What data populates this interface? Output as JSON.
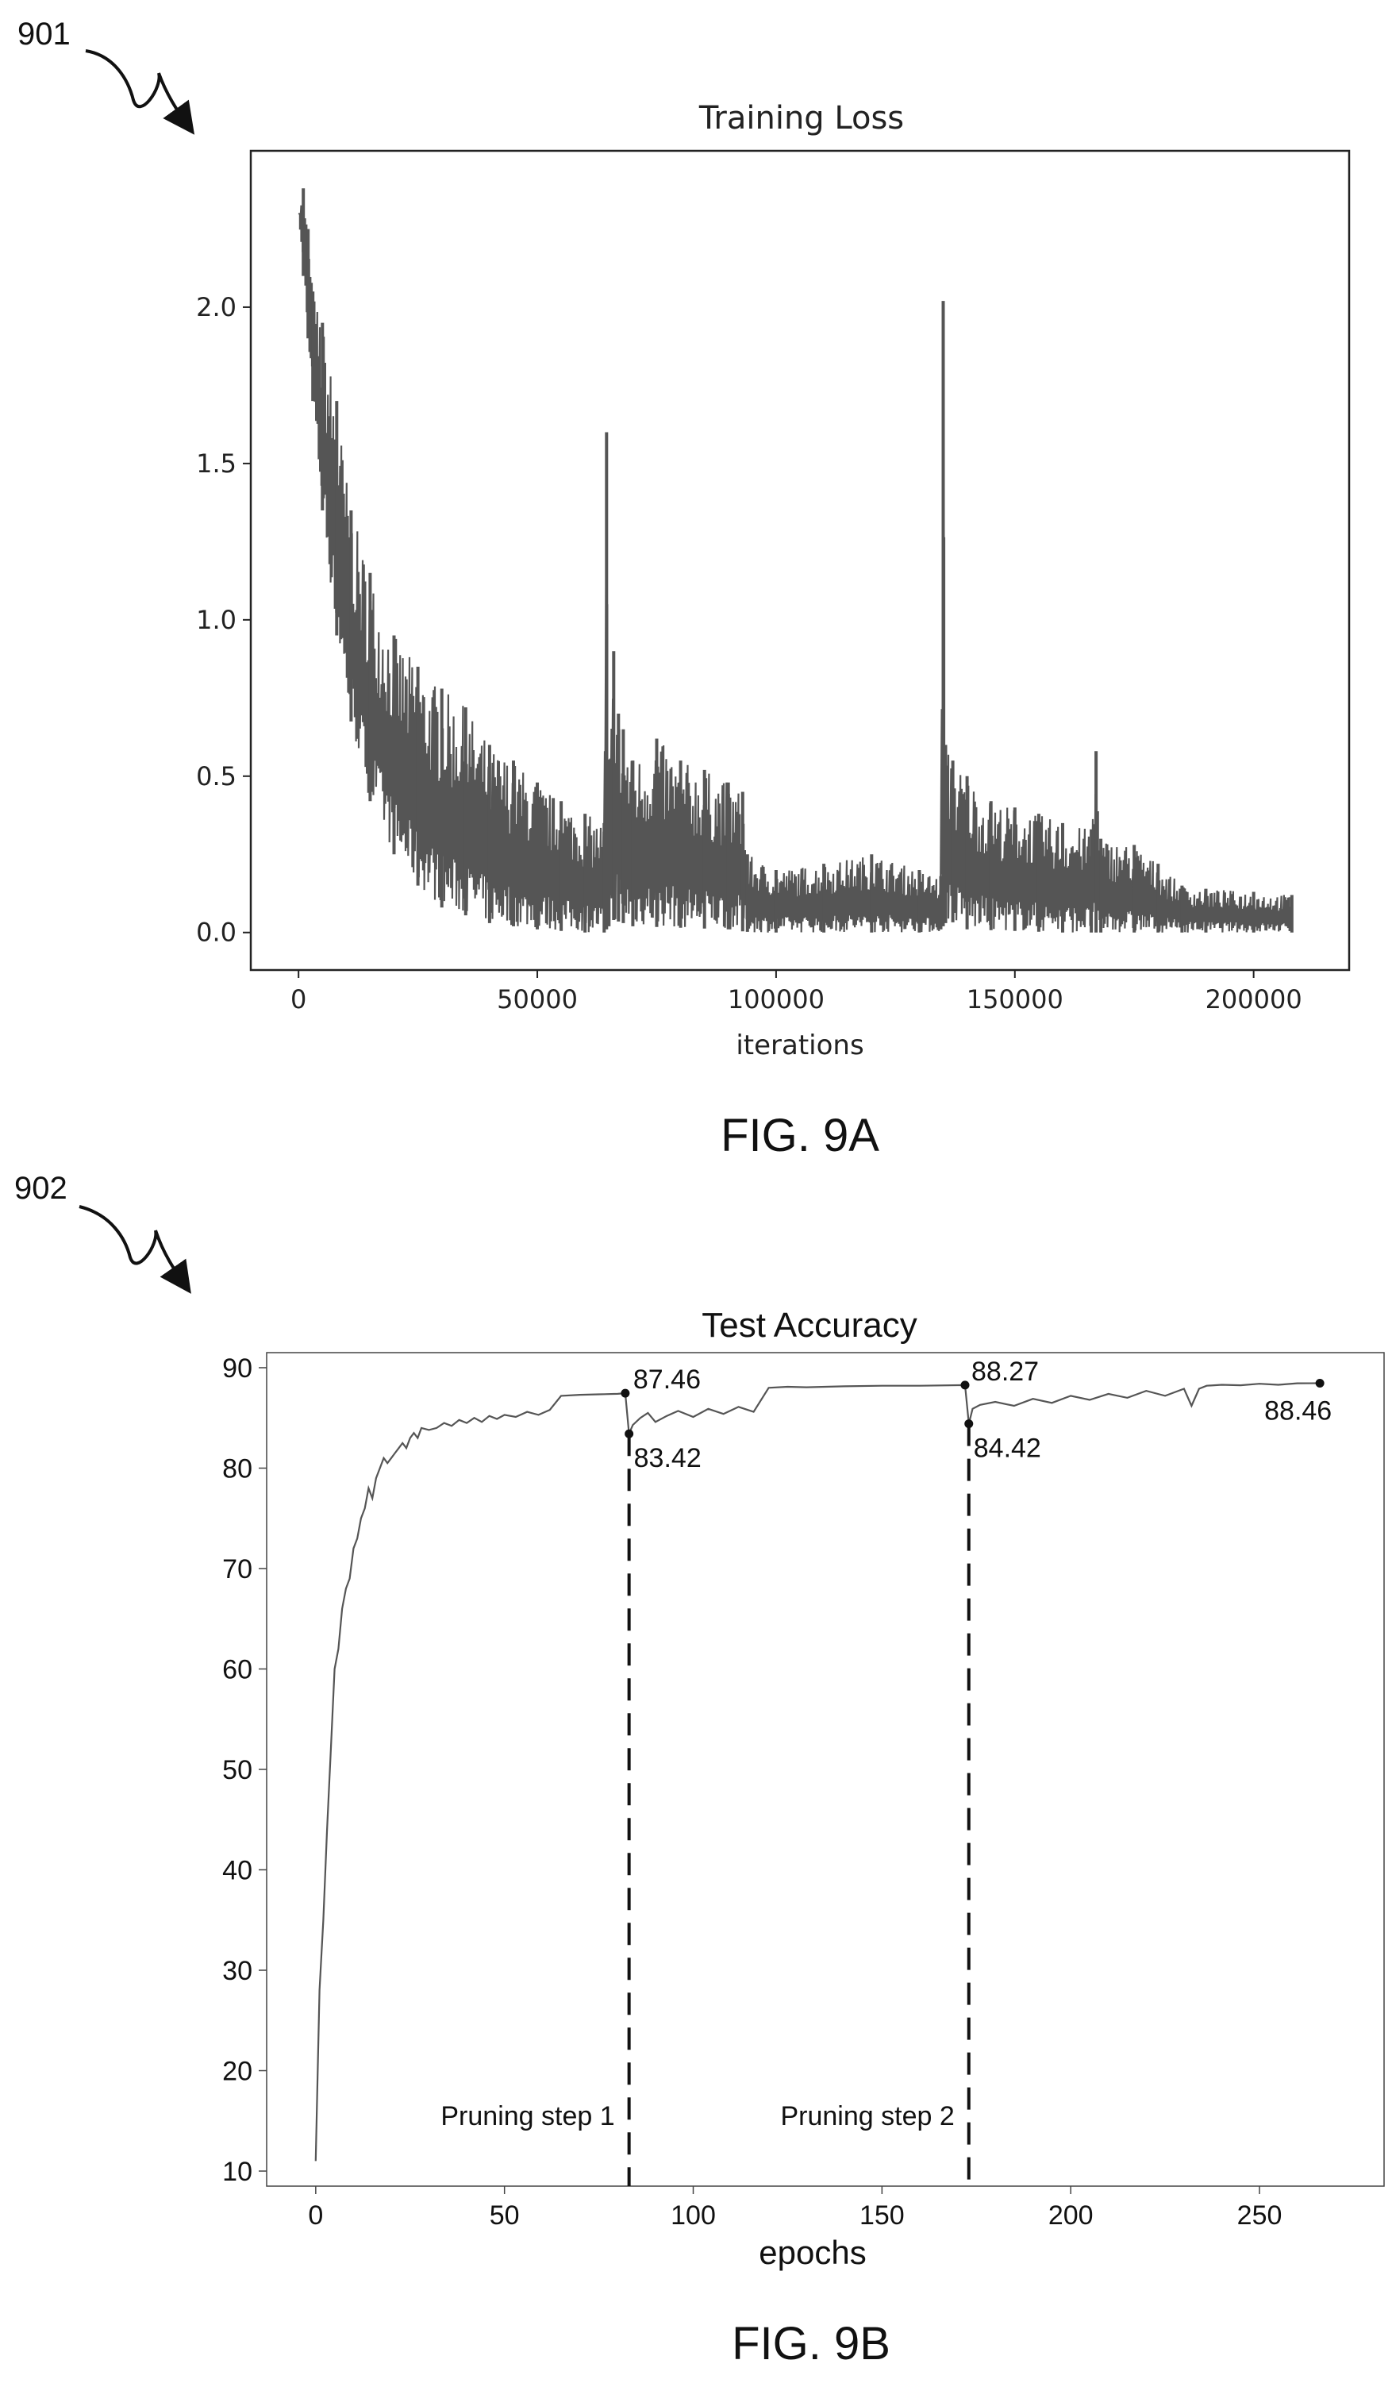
{
  "figure_a": {
    "ref_number": "901",
    "caption": "FIG. 9A"
  },
  "figure_b": {
    "ref_number": "902",
    "caption": "FIG. 9B"
  },
  "chart_data": [
    {
      "type": "line",
      "title": "Training Loss",
      "xlabel": "iterations",
      "ylabel": "",
      "xlim": [
        -10000,
        220000
      ],
      "ylim": [
        -0.12,
        2.5
      ],
      "xticks": [
        "0",
        "50000",
        "100000",
        "150000",
        "200000"
      ],
      "yticks": [
        "0.0",
        "0.5",
        "1.0",
        "1.5",
        "2.0"
      ],
      "grid": false,
      "series": [
        {
          "color": "#555555",
          "upper_envelope": {
            "x": [
              0,
              1000,
              2000,
              3000,
              5000,
              8000,
              11000,
              15000,
              20000,
              25000,
              30000,
              35000,
              40000,
              45000,
              50000,
              55000,
              60000,
              64000,
              64500,
              65000,
              66000,
              67000,
              68000,
              70000,
              75000,
              80000,
              85000,
              90000,
              93000,
              94000,
              100000,
              110000,
              120000,
              130000,
              134500,
              135000,
              135500,
              137000,
              140000,
              145000,
              150000,
              155000,
              160000,
              166000,
              167000,
              168000,
              175000,
              180000,
              185000,
              190000,
              200000,
              208000
            ],
            "y": [
              2.3,
              2.38,
              2.25,
              2.05,
              1.95,
              1.7,
              1.35,
              1.15,
              0.95,
              0.85,
              0.78,
              0.72,
              0.6,
              0.55,
              0.48,
              0.42,
              0.38,
              0.35,
              1.6,
              0.5,
              0.9,
              0.7,
              0.65,
              0.55,
              0.62,
              0.55,
              0.52,
              0.48,
              0.45,
              0.25,
              0.2,
              0.22,
              0.25,
              0.2,
              0.18,
              2.02,
              0.6,
              0.55,
              0.5,
              0.42,
              0.4,
              0.38,
              0.35,
              0.33,
              0.58,
              0.3,
              0.28,
              0.22,
              0.15,
              0.14,
              0.13,
              0.12
            ]
          },
          "lower_envelope": {
            "x": [
              0,
              2000,
              4000,
              6000,
              8000,
              10000,
              12000,
              15000,
              20000,
              25000,
              30000,
              40000,
              50000,
              60000,
              64000,
              66000,
              70000,
              90000,
              95000,
              134000,
              136000,
              140000,
              160000,
              180000,
              208000
            ],
            "y": [
              2.3,
              1.9,
              1.5,
              1.2,
              0.95,
              0.75,
              0.6,
              0.42,
              0.25,
              0.15,
              0.08,
              0.03,
              0.01,
              0.0,
              0.0,
              0.04,
              0.02,
              0.01,
              0.0,
              0.0,
              0.04,
              0.01,
              0.0,
              0.0,
              0.0
            ]
          }
        }
      ]
    },
    {
      "type": "line",
      "title": "Test Accuracy",
      "xlabel": "epochs",
      "ylabel": "",
      "xlim": [
        -13,
        283
      ],
      "ylim": [
        8.5,
        91.5
      ],
      "xticks": [
        "0",
        "50",
        "100",
        "150",
        "200",
        "250"
      ],
      "yticks": [
        "10",
        "20",
        "30",
        "40",
        "50",
        "60",
        "70",
        "80",
        "90"
      ],
      "grid": false,
      "series": [
        {
          "color": "#555555",
          "x": [
            0,
            1,
            2,
            3,
            4,
            5,
            6,
            7,
            8,
            9,
            10,
            11,
            12,
            13,
            14,
            15,
            16,
            17,
            18,
            19,
            20,
            21,
            22,
            23,
            24,
            25,
            26,
            27,
            28,
            30,
            32,
            34,
            36,
            38,
            40,
            42,
            44,
            46,
            48,
            50,
            53,
            56,
            59,
            62,
            65,
            70,
            75,
            80,
            82,
            83,
            84,
            86,
            88,
            90,
            93,
            96,
            100,
            104,
            108,
            112,
            116,
            120,
            125,
            130,
            140,
            150,
            160,
            172,
            173,
            174,
            176,
            180,
            185,
            190,
            195,
            200,
            205,
            210,
            215,
            220,
            225,
            230,
            232,
            234,
            236,
            240,
            245,
            250,
            255,
            260,
            266
          ],
          "y": [
            11,
            28,
            35,
            44,
            52,
            60,
            62,
            66,
            68,
            69,
            72,
            73,
            75,
            76,
            78,
            77,
            79,
            80,
            81,
            80.5,
            81,
            81.5,
            82,
            82.5,
            82,
            83,
            83.5,
            83,
            84,
            83.8,
            84,
            84.5,
            84.2,
            84.8,
            84.5,
            85,
            84.6,
            85.2,
            84.9,
            85.3,
            85.1,
            85.6,
            85.3,
            85.8,
            87.2,
            87.3,
            87.35,
            87.4,
            87.46,
            83.42,
            84.3,
            85.0,
            85.5,
            84.6,
            85.2,
            85.7,
            85.1,
            85.9,
            85.4,
            86.1,
            85.6,
            88.0,
            88.1,
            88.05,
            88.15,
            88.2,
            88.2,
            88.27,
            84.42,
            85.9,
            86.3,
            86.6,
            86.2,
            86.9,
            86.5,
            87.2,
            86.8,
            87.4,
            87.0,
            87.7,
            87.2,
            87.9,
            86.2,
            87.9,
            88.2,
            88.3,
            88.25,
            88.4,
            88.3,
            88.45,
            88.46
          ]
        }
      ],
      "annotations": [
        {
          "label": "87.46",
          "x": 82,
          "y": 87.46
        },
        {
          "label": "83.42",
          "x": 83,
          "y": 83.42
        },
        {
          "label": "88.27",
          "x": 172,
          "y": 88.27
        },
        {
          "label": "84.42",
          "x": 173,
          "y": 84.42
        },
        {
          "label": "88.46",
          "x": 266,
          "y": 88.46
        }
      ],
      "vertical_markers": [
        {
          "label": "Pruning step 1",
          "x": 83
        },
        {
          "label": "Pruning step 2",
          "x": 173
        }
      ]
    }
  ]
}
